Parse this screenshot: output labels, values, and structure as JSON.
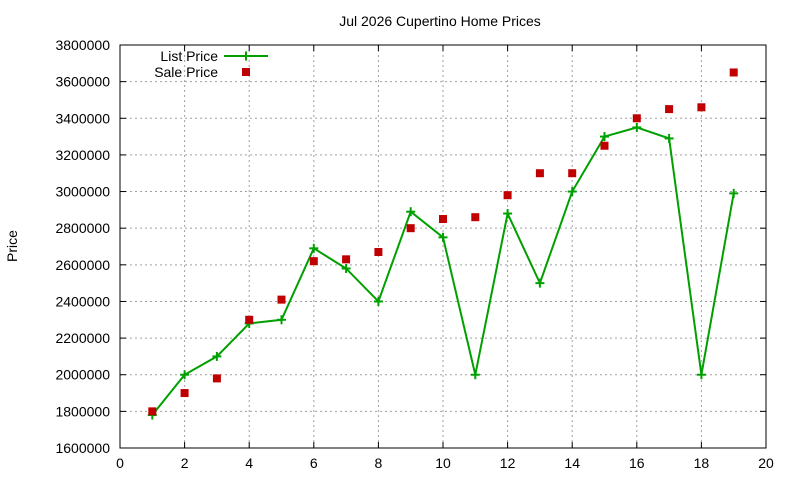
{
  "chart_data": {
    "type": "line",
    "title": "Jul 2026 Cupertino Home Prices",
    "xlabel": "",
    "ylabel": "Price",
    "xlim": [
      0,
      20
    ],
    "ylim": [
      1600000,
      3800000
    ],
    "xticks": [
      0,
      2,
      4,
      6,
      8,
      10,
      12,
      14,
      16,
      18,
      20
    ],
    "yticks": [
      1600000,
      1800000,
      2000000,
      2200000,
      2400000,
      2600000,
      2800000,
      3000000,
      3200000,
      3400000,
      3600000,
      3800000
    ],
    "grid": true,
    "legend_position": "top-left",
    "series": [
      {
        "name": "List Price",
        "style": "lines+crosses",
        "color": "#00a000",
        "points": [
          [
            1,
            1780000
          ],
          [
            2,
            2000000
          ],
          [
            3,
            2100000
          ],
          [
            4,
            2280000
          ],
          [
            5,
            2300000
          ],
          [
            6,
            2690000
          ],
          [
            7,
            2580000
          ],
          [
            8,
            2400000
          ],
          [
            9,
            2890000
          ],
          [
            10,
            2750000
          ],
          [
            11,
            2000000
          ],
          [
            12,
            2880000
          ],
          [
            13,
            2500000
          ],
          [
            14,
            3000000
          ],
          [
            15,
            3300000
          ],
          [
            16,
            3350000
          ],
          [
            17,
            3290000
          ],
          [
            18,
            2000000
          ],
          [
            19,
            2990000
          ]
        ]
      },
      {
        "name": "Sale Price",
        "style": "squares",
        "color": "#c00000",
        "points": [
          [
            1,
            1800000
          ],
          [
            2,
            1900000
          ],
          [
            3,
            1980000
          ],
          [
            4,
            2300000
          ],
          [
            5,
            2410000
          ],
          [
            6,
            2620000
          ],
          [
            7,
            2630000
          ],
          [
            8,
            2670000
          ],
          [
            9,
            2800000
          ],
          [
            10,
            2850000
          ],
          [
            11,
            2860000
          ],
          [
            12,
            2980000
          ],
          [
            13,
            3100000
          ],
          [
            14,
            3100000
          ],
          [
            15,
            3250000
          ],
          [
            16,
            3400000
          ],
          [
            17,
            3450000
          ],
          [
            18,
            3460000
          ],
          [
            19,
            3650000
          ]
        ]
      }
    ]
  }
}
